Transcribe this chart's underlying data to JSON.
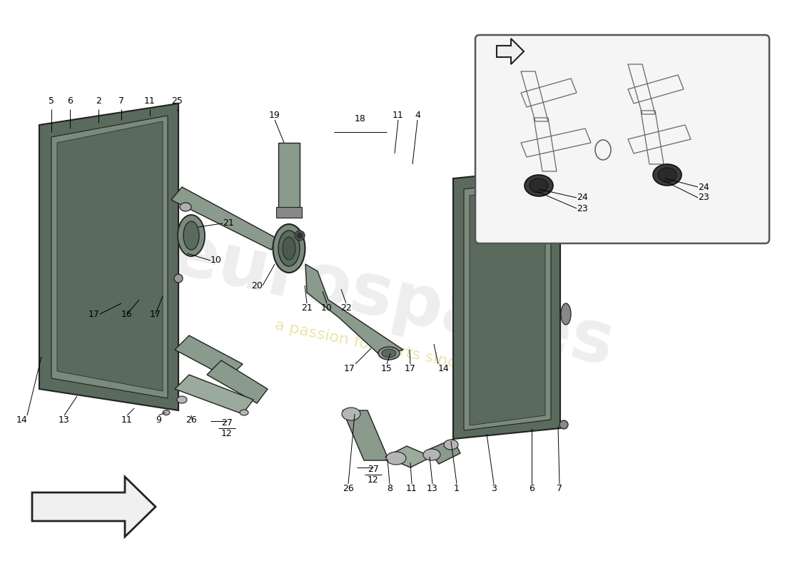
{
  "bg_color": "#ffffff",
  "outline_color": "#222222",
  "dark_part_color": "#5a6a5c",
  "mid_part_color": "#7a8a7c",
  "light_part_color": "#9aaa9c",
  "pipe_color": "#8a9a8c",
  "seal_color": "#aaaaaa",
  "inset_bg": "#f5f5f5",
  "inset_border": "#555555",
  "motor_color": "#3a3a3a",
  "arrow_fill": "#f0f0f0",
  "label_fs": 9,
  "watermark_color": "#d5d5d5",
  "watermark_sub_color": "#e0d880",
  "watermark_alpha": 0.4,
  "watermark_sub_alpha": 0.65,
  "watermark_rotation": -12
}
